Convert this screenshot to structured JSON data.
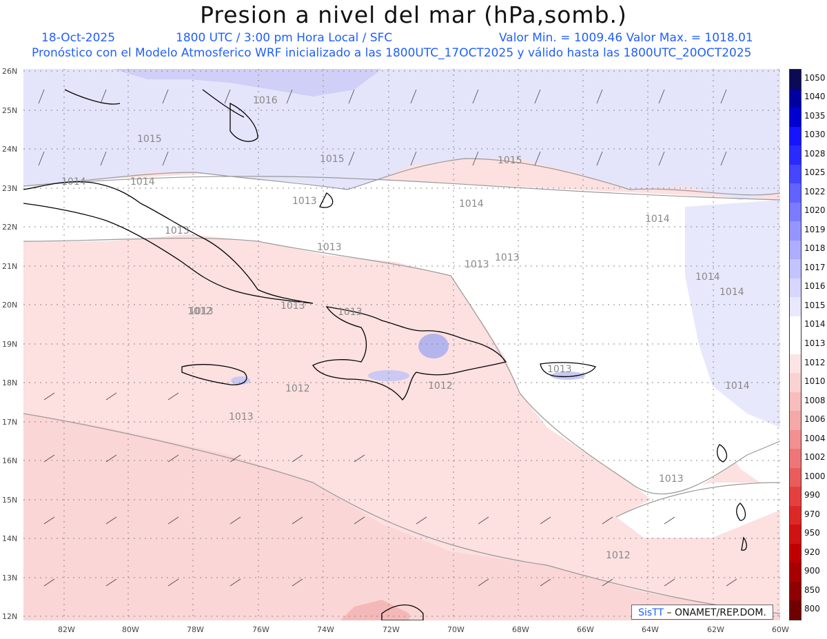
{
  "title": "Presion a nivel del mar (hPa,somb.)",
  "header": {
    "date": "18-Oct-2025",
    "time": "1800 UTC / 3:00 pm Hora Local / SFC",
    "min_max": "Valor Min. = 1009.46  Valor Max. = 1018.01",
    "model_line": "Pronóstico con el Modelo Atmosferico WRF inicializado a las 1800UTC_17OCT2025 y válido hasta las  1800UTC_20OCT2025"
  },
  "lat_labels": [
    "26N",
    "25N",
    "24N",
    "23N",
    "22N",
    "21N",
    "20N",
    "19N",
    "18N",
    "17N",
    "16N",
    "15N",
    "14N",
    "13N",
    "12N"
  ],
  "lon_labels": [
    "82W",
    "80W",
    "78W",
    "76W",
    "74W",
    "72W",
    "70W",
    "68W",
    "66W",
    "64W",
    "62W",
    "60W"
  ],
  "contour_labels": [
    {
      "text": "1016"
    },
    {
      "text": "1015"
    },
    {
      "text": "1015"
    },
    {
      "text": "1015"
    },
    {
      "text": "1014"
    },
    {
      "text": "1014"
    },
    {
      "text": "1014"
    },
    {
      "text": "1014"
    },
    {
      "text": "1013"
    },
    {
      "text": "1013"
    },
    {
      "text": "1013"
    },
    {
      "text": "1013"
    },
    {
      "text": "1013"
    },
    {
      "text": "1014"
    },
    {
      "text": "1014"
    },
    {
      "text": "1013"
    },
    {
      "text": "1012"
    },
    {
      "text": "1013"
    },
    {
      "text": "1012"
    },
    {
      "text": "1012"
    },
    {
      "text": "1013"
    },
    {
      "text": "1014"
    },
    {
      "text": "1013"
    },
    {
      "text": "1012"
    },
    {
      "text": "1013"
    },
    {
      "text": "1013"
    }
  ],
  "colorbar": {
    "labels": [
      "1050",
      "1040",
      "1035",
      "1030",
      "1028",
      "1025",
      "1022",
      "1020",
      "1019",
      "1018",
      "1017",
      "1016",
      "1015",
      "1014",
      "1013",
      "1012",
      "1010",
      "1008",
      "1006",
      "1004",
      "1002",
      "1000",
      "990",
      "970",
      "950",
      "920",
      "900",
      "850",
      "800"
    ],
    "colors": [
      "#0a0a55",
      "#0000a0",
      "#0000d0",
      "#1414ff",
      "#2a2aff",
      "#4646ff",
      "#6262ff",
      "#7b7bff",
      "#9595ff",
      "#adadff",
      "#c3c3ff",
      "#d6d6ff",
      "#e8e8ff",
      "#ffffff",
      "#ffffff",
      "#fde4e4",
      "#fbd2d2",
      "#f8bdbd",
      "#f5a8a8",
      "#f29090",
      "#ee7676",
      "#ea5c5c",
      "#e54040",
      "#dd2828",
      "#d01212",
      "#c00000",
      "#a80000",
      "#900000",
      "#700000"
    ]
  },
  "credit": {
    "brand": "SisTT",
    "text": " – ONAMET/REP.DOM."
  }
}
